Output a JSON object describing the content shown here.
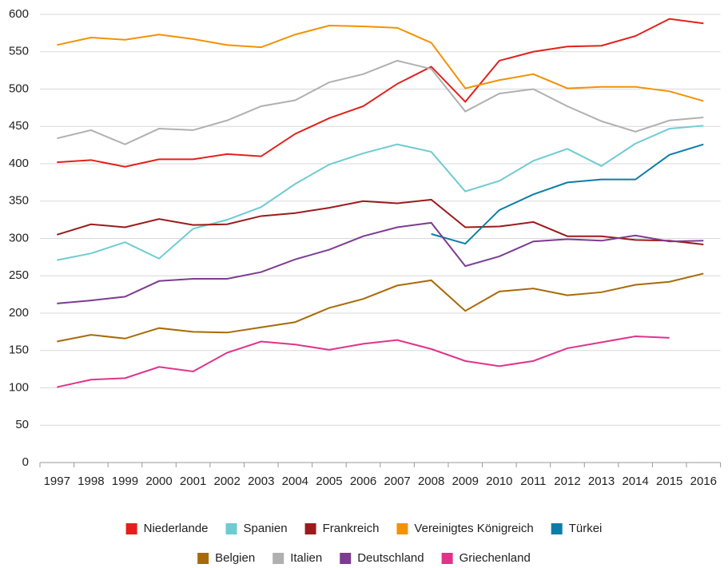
{
  "chart_data": {
    "type": "line",
    "categories": [
      "1997",
      "1998",
      "1999",
      "2000",
      "2001",
      "2002",
      "2003",
      "2004",
      "2005",
      "2006",
      "2007",
      "2008",
      "2009",
      "2010",
      "2011",
      "2012",
      "2013",
      "2014",
      "2015",
      "2016"
    ],
    "ylim": [
      0,
      600
    ],
    "yticks": [
      0,
      50,
      100,
      150,
      200,
      250,
      300,
      350,
      400,
      450,
      500,
      550,
      600
    ],
    "grid": true,
    "legend": "bottom",
    "series": [
      {
        "name": "Niederlande",
        "color": "#e3201b",
        "values": [
          402,
          405,
          396,
          406,
          406,
          413,
          410,
          440,
          461,
          477,
          507,
          530,
          483,
          538,
          550,
          557,
          558,
          571,
          594,
          588
        ]
      },
      {
        "name": "Spanien",
        "color": "#6ecbd2",
        "values": [
          271,
          280,
          295,
          273,
          313,
          325,
          342,
          373,
          399,
          414,
          426,
          416,
          363,
          377,
          404,
          420,
          397,
          427,
          447,
          451
        ]
      },
      {
        "name": "Frankreich",
        "color": "#9b1b1b",
        "values": [
          305,
          319,
          315,
          326,
          318,
          319,
          330,
          334,
          341,
          350,
          347,
          352,
          315,
          316,
          322,
          303,
          303,
          298,
          297,
          292
        ]
      },
      {
        "name": "Vereinigtes Königreich",
        "color": "#f39200",
        "values": [
          559,
          569,
          566,
          573,
          567,
          559,
          556,
          573,
          585,
          584,
          582,
          562,
          501,
          512,
          520,
          501,
          503,
          503,
          497,
          484
        ]
      },
      {
        "name": "Türkei",
        "color": "#0a7ea8",
        "values": [
          null,
          null,
          null,
          null,
          null,
          null,
          null,
          null,
          null,
          null,
          null,
          306,
          293,
          338,
          359,
          375,
          379,
          379,
          412,
          426
        ]
      },
      {
        "name": "Belgien",
        "color": "#a86a08",
        "values": [
          162,
          171,
          166,
          180,
          175,
          174,
          181,
          188,
          207,
          219,
          237,
          244,
          203,
          229,
          233,
          224,
          228,
          238,
          242,
          253
        ]
      },
      {
        "name": "Italien",
        "color": "#b0b0b0",
        "values": [
          434,
          445,
          426,
          447,
          445,
          458,
          477,
          485,
          509,
          520,
          538,
          527,
          470,
          494,
          500,
          477,
          457,
          443,
          458,
          462
        ]
      },
      {
        "name": "Deutschland",
        "color": "#7c3c91",
        "values": [
          213,
          217,
          222,
          243,
          246,
          246,
          255,
          272,
          285,
          303,
          315,
          321,
          263,
          276,
          296,
          299,
          297,
          304,
          296,
          297
        ]
      },
      {
        "name": "Griechenland",
        "color": "#e0338a",
        "values": [
          101,
          111,
          113,
          128,
          122,
          147,
          162,
          158,
          151,
          159,
          164,
          152,
          136,
          129,
          136,
          153,
          161,
          169,
          167,
          null
        ]
      }
    ]
  }
}
